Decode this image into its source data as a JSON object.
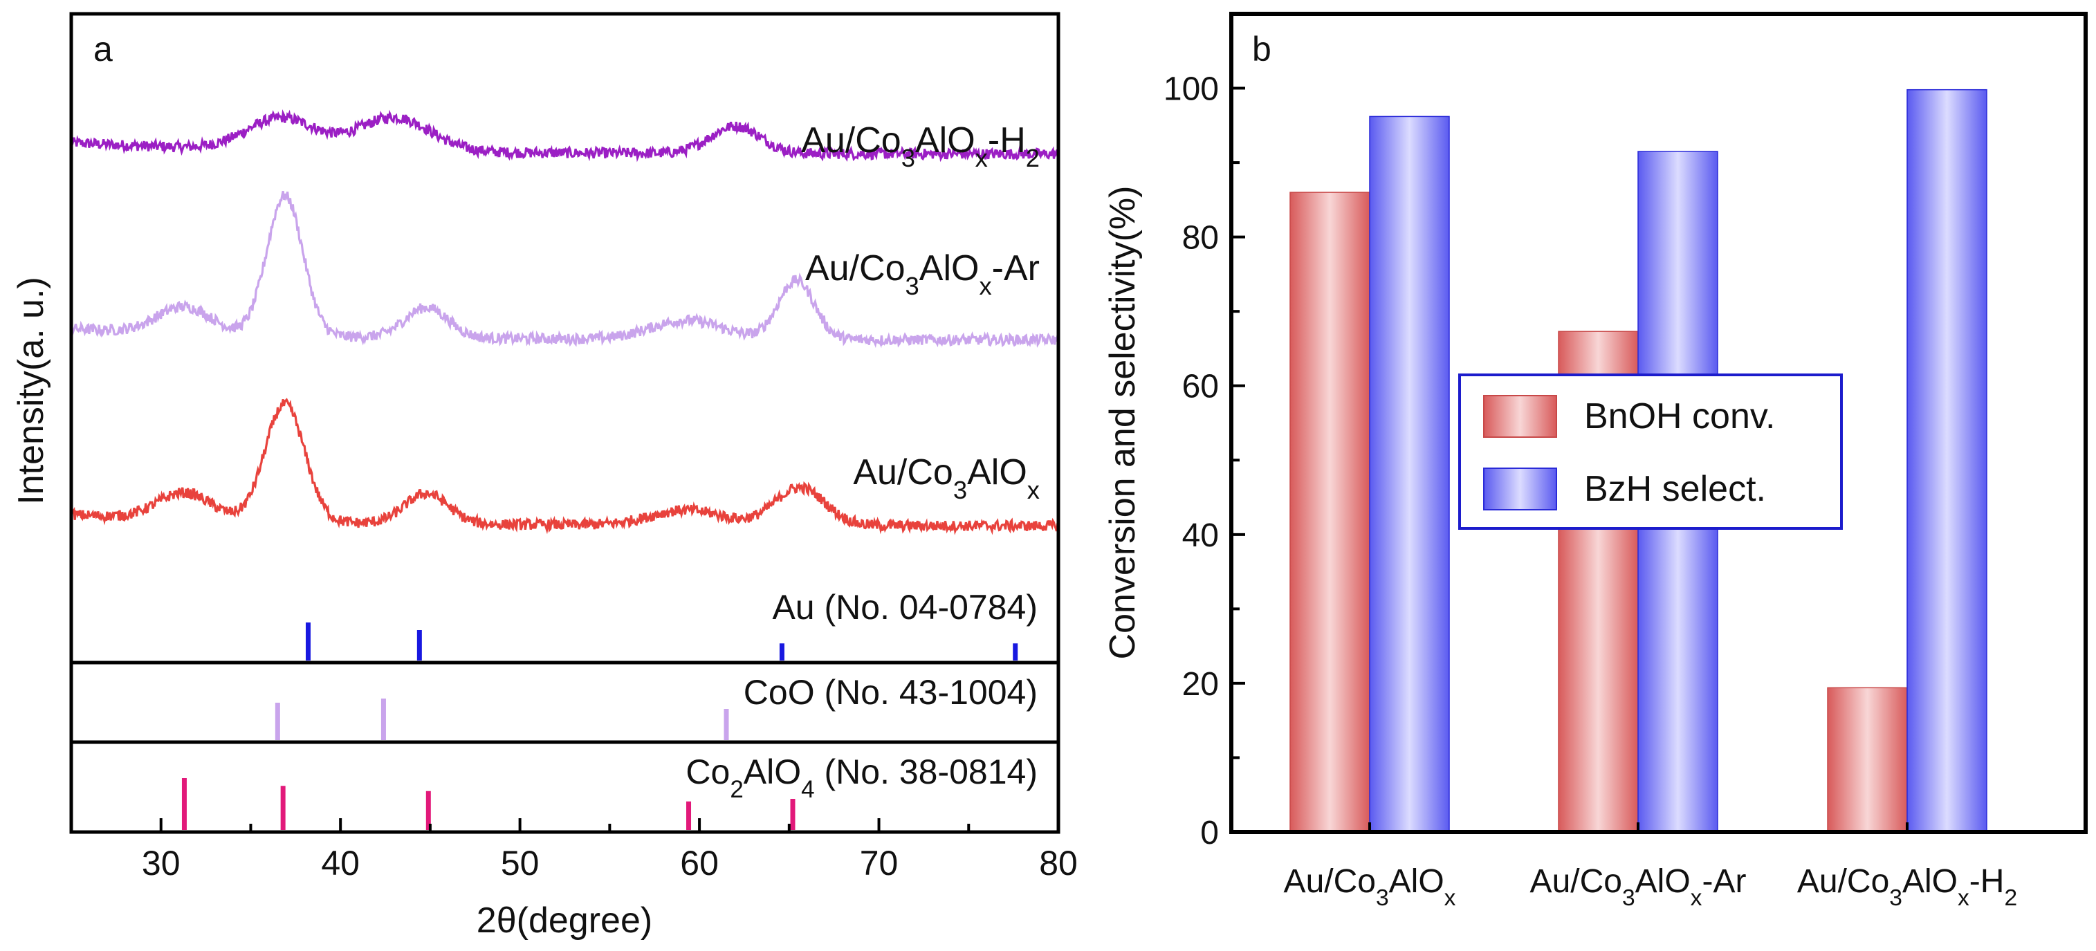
{
  "chart_data": [
    {
      "panel": "a",
      "type": "line",
      "title": "",
      "xlabel": "2θ(degree)",
      "ylabel": "Intensity(a. u.)",
      "xlim": [
        25,
        80
      ],
      "x_ticks": [
        30,
        40,
        50,
        60,
        70,
        80
      ],
      "series": [
        {
          "name": "Au/Co3AlOx-H2",
          "label_main": "Au/Co",
          "label_sub1": "3",
          "label_mid": "AlO",
          "label_sub2": "x",
          "label_suffix": "-H",
          "label_sub3": "2",
          "color": "#9b1fc4",
          "baseline": 6.2,
          "peaks": [
            [
              36.7,
              0.42,
              1.9
            ],
            [
              43.0,
              0.45,
              2.0
            ],
            [
              62.0,
              0.36,
              1.4
            ]
          ],
          "noise": 0.07
        },
        {
          "name": "Au/Co3AlOx-Ar",
          "label_main": "Au/Co",
          "label_sub1": "3",
          "label_mid": "AlO",
          "label_sub2": "x",
          "label_suffix": "-Ar",
          "label_sub3": "",
          "color": "#c9a4ec",
          "baseline": 3.75,
          "peaks": [
            [
              31.3,
              0.35,
              1.5
            ],
            [
              36.9,
              1.85,
              1.0
            ],
            [
              44.8,
              0.4,
              1.2
            ],
            [
              59.3,
              0.25,
              2.0
            ],
            [
              65.4,
              0.78,
              1.0
            ]
          ],
          "noise": 0.07
        },
        {
          "name": "Au/Co3AlOx",
          "label_main": "Au/Co",
          "label_sub1": "3",
          "label_mid": "AlO",
          "label_sub2": "x",
          "label_suffix": "",
          "label_sub3": "",
          "color": "#e8423c",
          "baseline": 1.3,
          "peaks": [
            [
              31.3,
              0.35,
              1.5
            ],
            [
              36.9,
              1.55,
              1.1
            ],
            [
              44.8,
              0.4,
              1.2
            ],
            [
              59.3,
              0.2,
              2.0
            ],
            [
              65.6,
              0.5,
              1.4
            ]
          ],
          "noise": 0.07
        }
      ],
      "references": [
        {
          "label_pre": "Au",
          "label_sub": "",
          "label_post": " (No. 04-0784)",
          "color": "#1818e0",
          "lines": [
            [
              38.2,
              1.0
            ],
            [
              44.4,
              0.8
            ],
            [
              64.6,
              0.45
            ],
            [
              77.6,
              0.45
            ]
          ]
        },
        {
          "label_pre": "CoO",
          "label_sub": "",
          "label_post": " (No. 43-1004)",
          "color": "#c9a4ec",
          "lines": [
            [
              36.5,
              0.9
            ],
            [
              42.4,
              1.0
            ],
            [
              61.5,
              0.75
            ]
          ]
        },
        {
          "label_pre": "Co",
          "label_sub": "2",
          "label_post": "AlO",
          "label_sub2": "4",
          "label_post2": " (No. 38-0814)",
          "color": "#e2197a",
          "lines": [
            [
              31.3,
              1.0
            ],
            [
              36.8,
              0.85
            ],
            [
              44.9,
              0.75
            ],
            [
              59.4,
              0.55
            ],
            [
              65.2,
              0.6
            ]
          ]
        }
      ]
    },
    {
      "panel": "b",
      "type": "bar",
      "title": "",
      "xlabel": "",
      "ylabel": "Conversion and selectivity(%)",
      "ylim": [
        0,
        110
      ],
      "y_ticks": [
        0,
        20,
        40,
        60,
        80,
        100
      ],
      "categories": [
        {
          "main": "Au/Co",
          "sub1": "3",
          "mid": "AlO",
          "sub2": "x",
          "suffix": "",
          "sub3": ""
        },
        {
          "main": "Au/Co",
          "sub1": "3",
          "mid": "AlO",
          "sub2": "x",
          "suffix": "-Ar",
          "sub3": ""
        },
        {
          "main": "Au/Co",
          "sub1": "3",
          "mid": "AlO",
          "sub2": "x",
          "suffix": "-H",
          "sub3": "2"
        }
      ],
      "series": [
        {
          "name": "BnOH conv.",
          "values": [
            86,
            67.3,
            19.4
          ],
          "color": "#e07070"
        },
        {
          "name": "BzH select.",
          "values": [
            96.2,
            91.5,
            99.8
          ],
          "color": "#6a6af5"
        }
      ],
      "legend_position": "center-right"
    }
  ],
  "panel_letters": [
    "a",
    "b"
  ]
}
